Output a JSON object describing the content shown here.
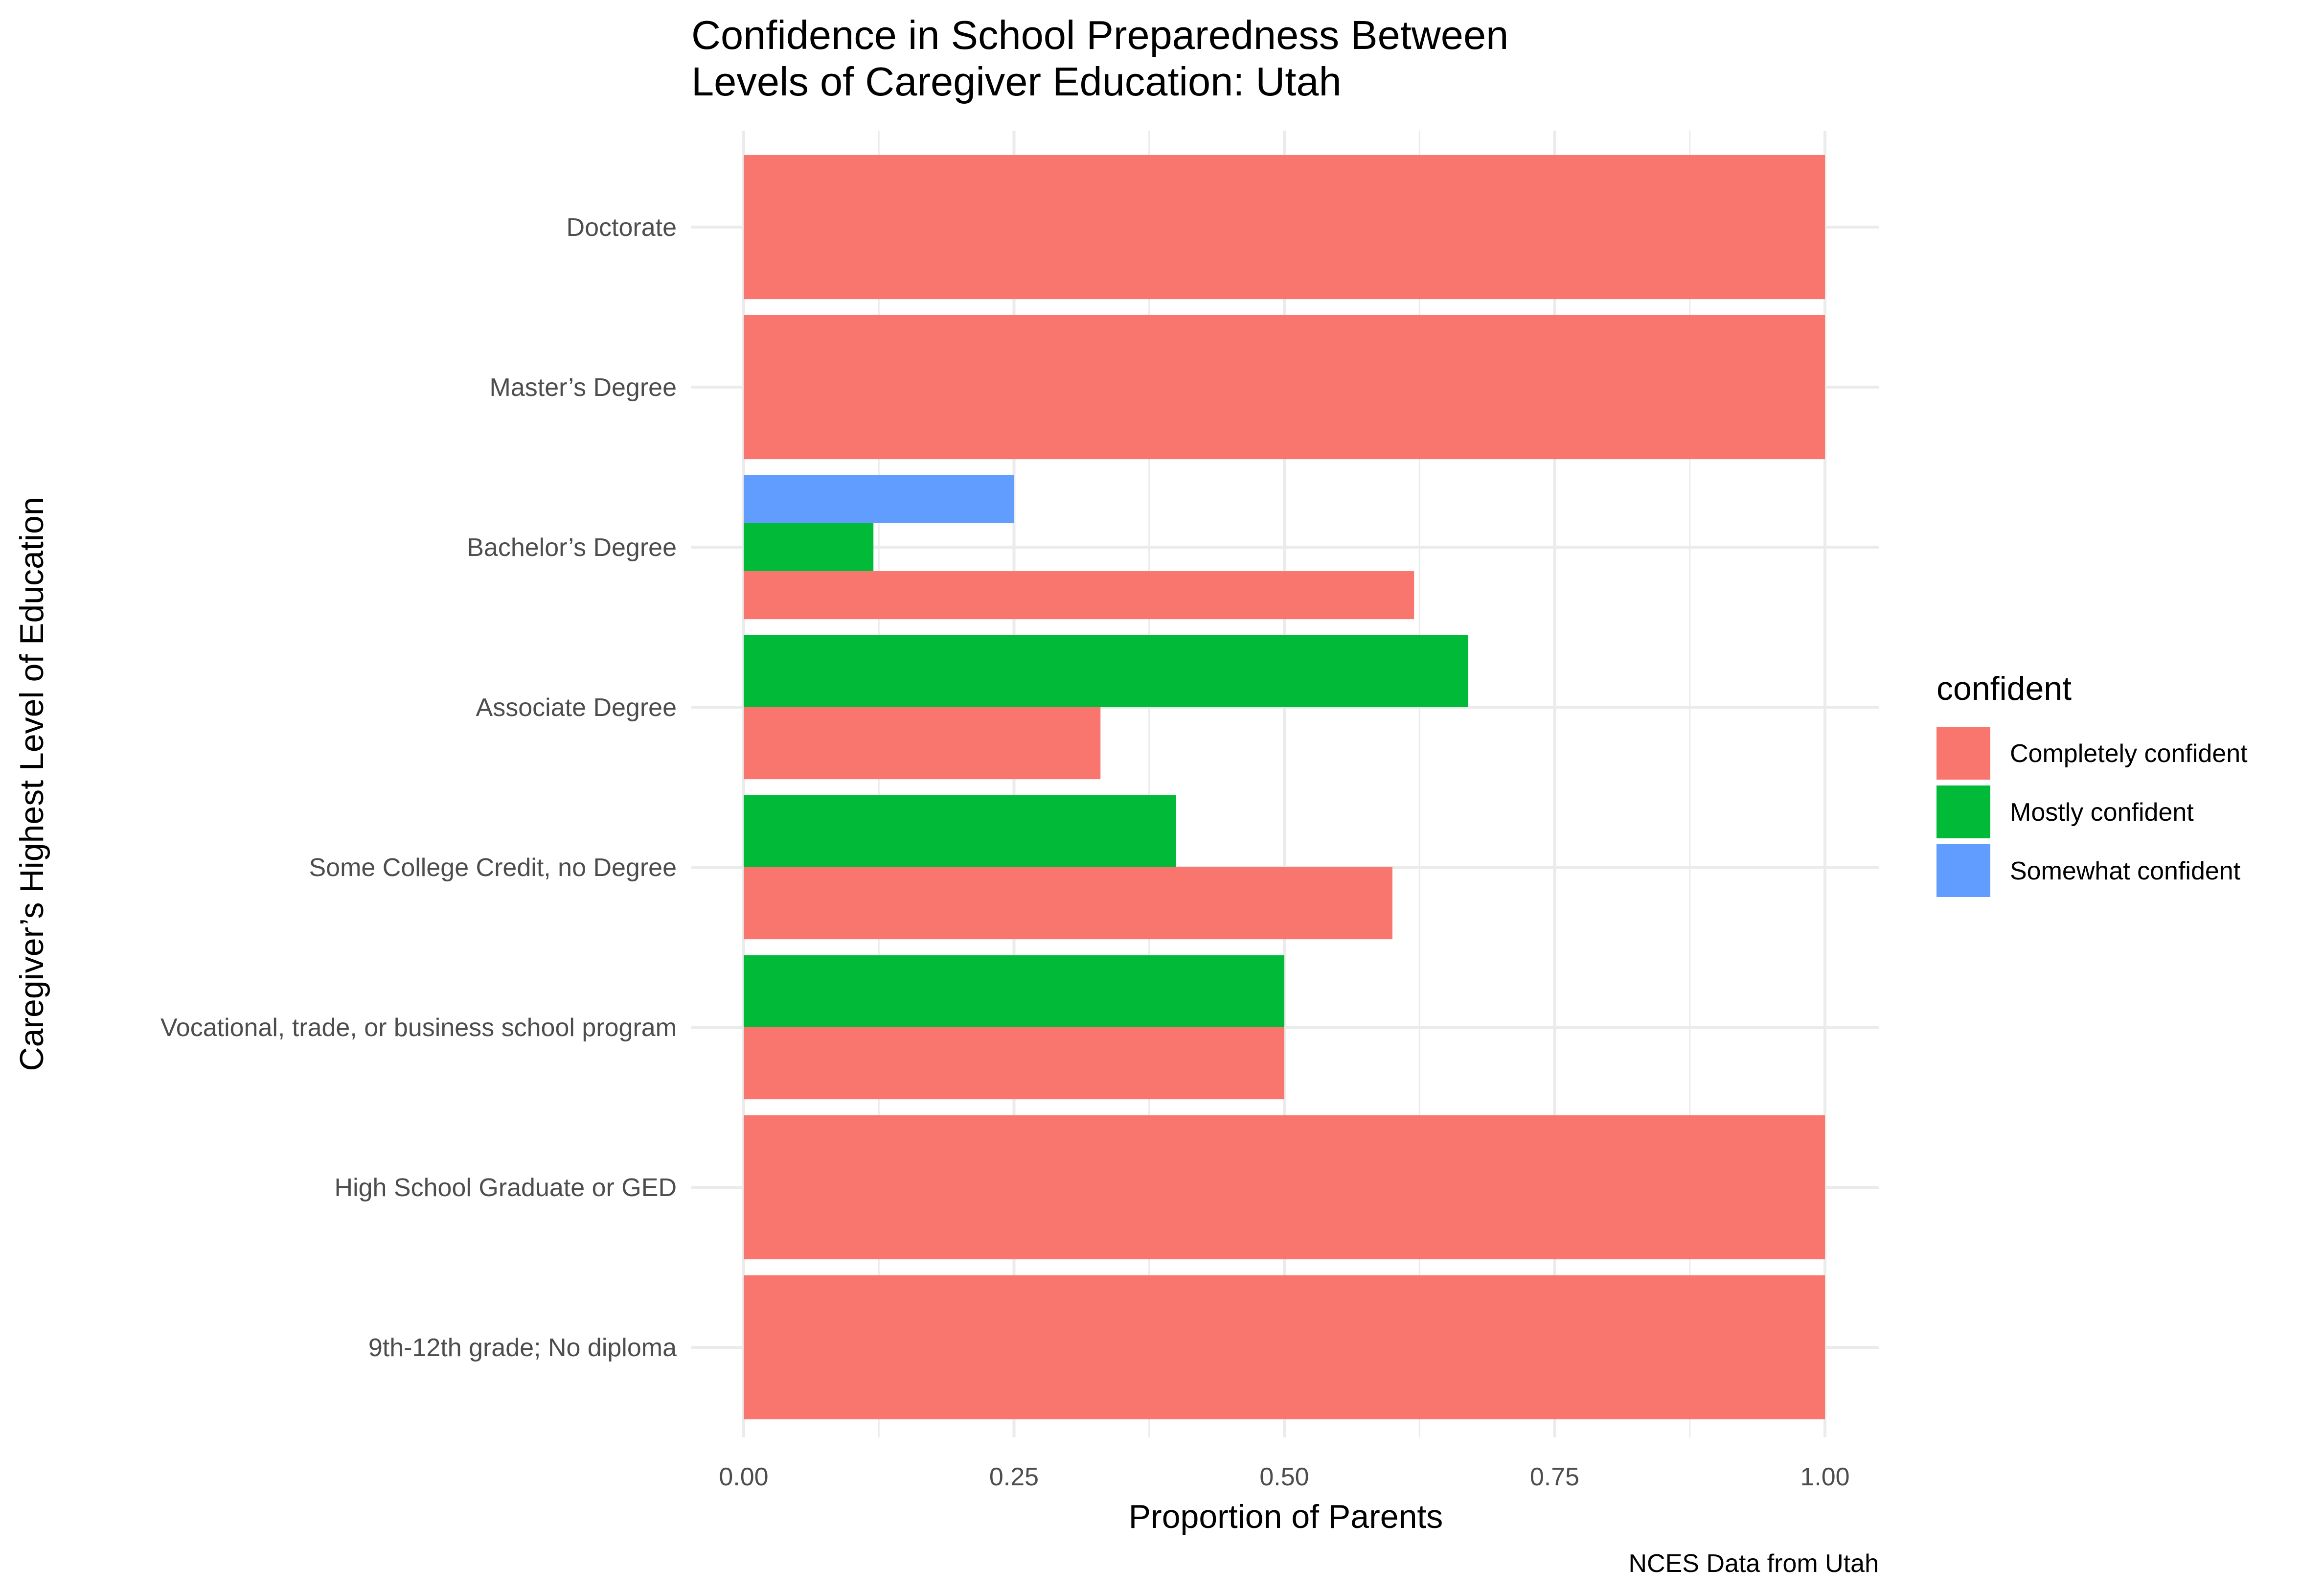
{
  "chart_data": {
    "type": "bar",
    "orientation": "horizontal",
    "position": "dodge",
    "title": "Confidence in School Preparedness Between\nLevels of Caregiver Education: Utah",
    "xlabel": "Proportion of Parents",
    "ylabel": "Caregiver’s Highest Level of Education",
    "caption": "NCES Data from Utah",
    "xlim": [
      0,
      1
    ],
    "x_ticks": [
      "0.00",
      "0.25",
      "0.50",
      "0.75",
      "1.00"
    ],
    "grid": true,
    "legend": {
      "title": "confident",
      "placement": "right",
      "entries": [
        "Completely confident",
        "Mostly confident",
        "Somewhat confident"
      ]
    },
    "colors": {
      "Completely confident": "#F8766D",
      "Mostly confident": "#00BA38",
      "Somewhat confident": "#619CFF"
    },
    "categories": [
      "9th-12th grade; No diploma",
      "High School Graduate or GED",
      "Vocational, trade, or business school program",
      "Some College Credit, no Degree",
      "Associate Degree",
      "Bachelor’s Degree",
      "Master’s Degree",
      "Doctorate"
    ],
    "groups": [
      {
        "category": "9th-12th grade; No diploma",
        "bars": [
          {
            "series": "Completely confident",
            "value": 1.0
          }
        ]
      },
      {
        "category": "High School Graduate or GED",
        "bars": [
          {
            "series": "Completely confident",
            "value": 1.0
          }
        ]
      },
      {
        "category": "Vocational, trade, or business school program",
        "bars": [
          {
            "series": "Completely confident",
            "value": 0.5
          },
          {
            "series": "Mostly confident",
            "value": 0.5
          }
        ]
      },
      {
        "category": "Some College Credit, no Degree",
        "bars": [
          {
            "series": "Completely confident",
            "value": 0.6
          },
          {
            "series": "Mostly confident",
            "value": 0.4
          }
        ]
      },
      {
        "category": "Associate Degree",
        "bars": [
          {
            "series": "Completely confident",
            "value": 0.33
          },
          {
            "series": "Mostly confident",
            "value": 0.67
          }
        ]
      },
      {
        "category": "Bachelor’s Degree",
        "bars": [
          {
            "series": "Completely confident",
            "value": 0.62
          },
          {
            "series": "Mostly confident",
            "value": 0.12
          },
          {
            "series": "Somewhat confident",
            "value": 0.25
          }
        ]
      },
      {
        "category": "Master’s Degree",
        "bars": [
          {
            "series": "Completely confident",
            "value": 1.0
          }
        ]
      },
      {
        "category": "Doctorate",
        "bars": [
          {
            "series": "Completely confident",
            "value": 1.0
          }
        ]
      }
    ]
  }
}
